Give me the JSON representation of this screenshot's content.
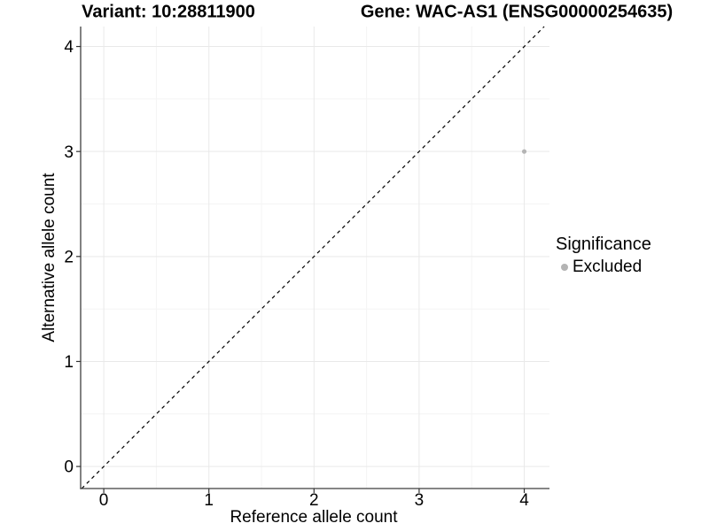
{
  "titles": {
    "variant": "Variant: 10:28811900",
    "gene": "Gene: WAC-AS1 (ENSG00000254635)"
  },
  "chart_data": {
    "type": "scatter",
    "title_left": "Variant: 10:28811900",
    "title_right": "Gene: WAC-AS1 (ENSG00000254635)",
    "xlabel": "Reference allele count",
    "ylabel": "Alternative allele count",
    "xlim": [
      -0.22,
      4.24
    ],
    "ylim": [
      -0.21,
      4.19
    ],
    "xticks": [
      0,
      1,
      2,
      3,
      4
    ],
    "yticks": [
      0,
      1,
      2,
      3,
      4
    ],
    "minor_xticks": [
      0.5,
      1.5,
      2.5,
      3.5
    ],
    "minor_yticks": [
      0.5,
      1.5,
      2.5,
      3.5
    ],
    "grid": true,
    "reference_line": {
      "slope": 1,
      "intercept": 0,
      "style": "dashed"
    },
    "series": [
      {
        "name": "Excluded",
        "marker": "circle",
        "color": "#b4b4b4",
        "points": [
          {
            "x": 4,
            "y": 3
          }
        ]
      }
    ],
    "legend": {
      "title": "Significance",
      "position": "right",
      "items": [
        {
          "label": "Excluded",
          "color": "#b4b4b4"
        }
      ]
    }
  },
  "colors": {
    "background": "#ffffff",
    "grid_major": "#e9e9e9",
    "grid_minor": "#f4f4f4",
    "axis_line": "#3f3f3f",
    "tick_mark": "#333333",
    "tick_label": "#000000",
    "reference_line": "#000000"
  }
}
